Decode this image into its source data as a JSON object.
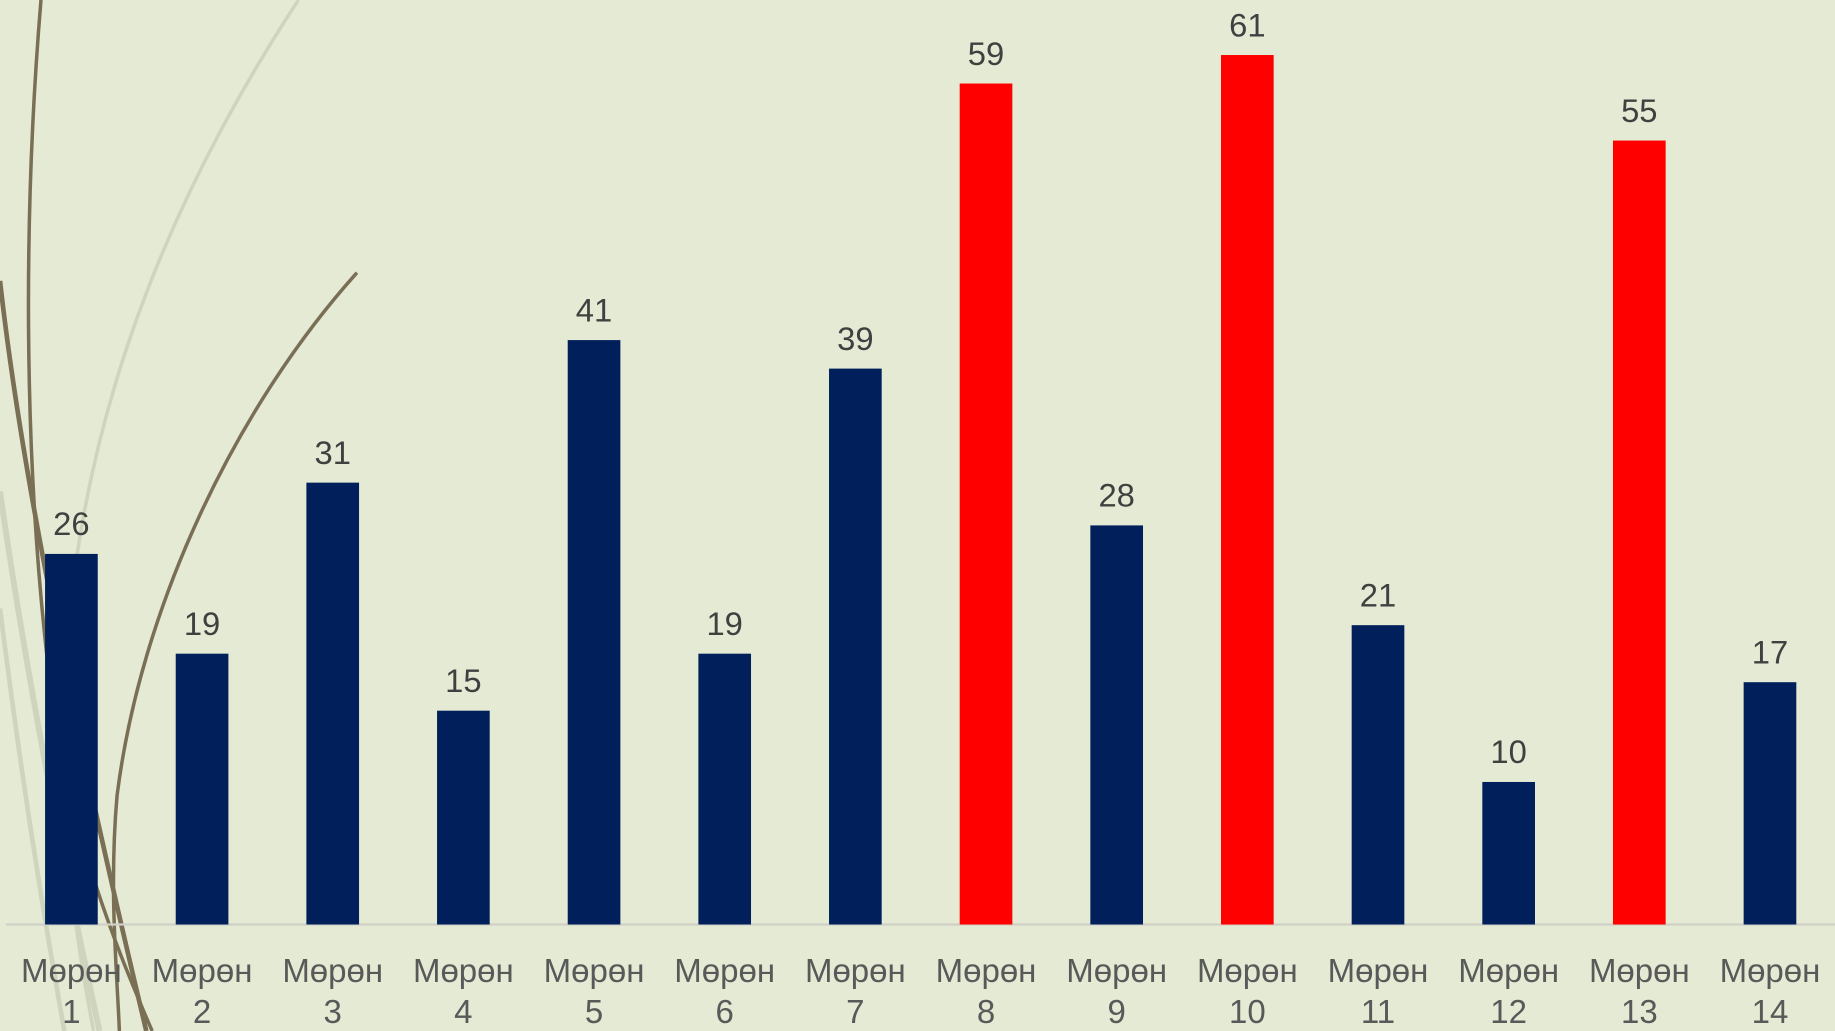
{
  "chart_data": {
    "type": "bar",
    "categories": [
      "Мөрөн 1",
      "Мөрөн 2",
      "Мөрөн 3",
      "Мөрөн 4",
      "Мөрөн 5",
      "Мөрөн 6",
      "Мөрөн 7",
      "Мөрөн 8",
      "Мөрөн 9",
      "Мөрөн 10",
      "Мөрөн 11",
      "Мөрөн 12",
      "Мөрөн 13",
      "Мөрөн 14"
    ],
    "values": [
      26,
      19,
      31,
      15,
      41,
      19,
      39,
      59,
      28,
      61,
      21,
      10,
      55,
      17
    ],
    "colors": [
      "#001f5b",
      "#001f5b",
      "#001f5b",
      "#001f5b",
      "#001f5b",
      "#001f5b",
      "#001f5b",
      "#ff0000",
      "#001f5b",
      "#ff0000",
      "#001f5b",
      "#001f5b",
      "#ff0000",
      "#001f5b"
    ],
    "data_labels": true
  }
}
